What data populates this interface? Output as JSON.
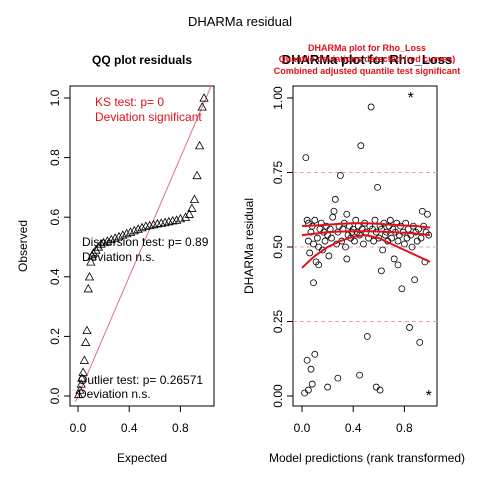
{
  "page_title": "DHARMa residual",
  "chart_data": [
    {
      "type": "scatter",
      "subtype": "qq",
      "title": "QQ plot residuals",
      "xlabel": "Expected",
      "ylabel": "Observed",
      "xlim": [
        0,
        1
      ],
      "ylim": [
        0,
        1
      ],
      "xticks": [
        "0.0",
        "0.4",
        "0.8"
      ],
      "yticks": [
        "0.0",
        "0.2",
        "0.4",
        "0.6",
        "0.8",
        "1.0"
      ],
      "reference_line": "identity",
      "point_marker": "triangle",
      "colors": {
        "reference": "#e07080",
        "text_significant": "#e0101a"
      },
      "annotations": {
        "ks_test": "KS test: p= 0",
        "ks_deviation": "Deviation  significant",
        "dispersion_test": "Dispersion test: p= 0.89",
        "dispersion_deviation": "Deviation  n.s.",
        "outlier_test": "Outlier test: p= 0.26571",
        "outlier_deviation": "Deviation  n.s."
      },
      "points": [
        [
          0.005,
          0.005
        ],
        [
          0.015,
          0.02
        ],
        [
          0.025,
          0.04
        ],
        [
          0.03,
          0.06
        ],
        [
          0.04,
          0.08
        ],
        [
          0.05,
          0.12
        ],
        [
          0.06,
          0.18
        ],
        [
          0.07,
          0.22
        ],
        [
          0.08,
          0.36
        ],
        [
          0.09,
          0.4
        ],
        [
          0.1,
          0.45
        ],
        [
          0.11,
          0.47
        ],
        [
          0.12,
          0.48
        ],
        [
          0.14,
          0.49
        ],
        [
          0.16,
          0.5
        ],
        [
          0.18,
          0.51
        ],
        [
          0.2,
          0.515
        ],
        [
          0.23,
          0.52
        ],
        [
          0.26,
          0.525
        ],
        [
          0.29,
          0.53
        ],
        [
          0.32,
          0.535
        ],
        [
          0.35,
          0.54
        ],
        [
          0.38,
          0.545
        ],
        [
          0.41,
          0.55
        ],
        [
          0.44,
          0.555
        ],
        [
          0.47,
          0.56
        ],
        [
          0.5,
          0.565
        ],
        [
          0.53,
          0.57
        ],
        [
          0.56,
          0.572
        ],
        [
          0.59,
          0.575
        ],
        [
          0.62,
          0.578
        ],
        [
          0.65,
          0.58
        ],
        [
          0.68,
          0.582
        ],
        [
          0.71,
          0.585
        ],
        [
          0.74,
          0.588
        ],
        [
          0.77,
          0.59
        ],
        [
          0.8,
          0.595
        ],
        [
          0.84,
          0.6
        ],
        [
          0.87,
          0.61
        ],
        [
          0.89,
          0.63
        ],
        [
          0.91,
          0.66
        ],
        [
          0.93,
          0.74
        ],
        [
          0.95,
          0.84
        ],
        [
          0.97,
          0.97
        ],
        [
          0.985,
          1.0
        ]
      ]
    },
    {
      "type": "scatter",
      "subtype": "residual_vs_predicted",
      "title": "DHARMa plot for Rho_Loss",
      "warning_lines": [
        "DHARMa plot for Rho_Loss",
        "Quantile deviations detected (red curves)",
        "Combined adjusted quantile test significant"
      ],
      "xlabel": "Model predictions (rank transformed)",
      "ylabel": "DHARMa residual",
      "xlim": [
        0,
        1
      ],
      "ylim": [
        0,
        1
      ],
      "xticks": [
        "0.0",
        "0.4",
        "0.8"
      ],
      "yticks": [
        "0.00",
        "0.25",
        "0.50",
        "0.75",
        "1.00"
      ],
      "reference_quantiles": [
        0.25,
        0.5,
        0.75
      ],
      "colors": {
        "quantile": "#e0101a",
        "reference": "#f0a0b0",
        "outlier": "#e0406a"
      },
      "quantile_curves": [
        {
          "name": "q0.25",
          "x": [
            0,
            0.1,
            0.2,
            0.3,
            0.4,
            0.5,
            0.6,
            0.7,
            0.8,
            0.9,
            1.0
          ],
          "y": [
            0.43,
            0.47,
            0.5,
            0.52,
            0.535,
            0.54,
            0.53,
            0.51,
            0.49,
            0.47,
            0.45
          ]
        },
        {
          "name": "q0.50",
          "x": [
            0,
            0.1,
            0.2,
            0.3,
            0.4,
            0.5,
            0.6,
            0.7,
            0.8,
            0.9,
            1.0
          ],
          "y": [
            0.54,
            0.545,
            0.55,
            0.552,
            0.553,
            0.553,
            0.552,
            0.55,
            0.548,
            0.545,
            0.54
          ]
        },
        {
          "name": "q0.75",
          "x": [
            0,
            0.1,
            0.2,
            0.3,
            0.4,
            0.5,
            0.6,
            0.7,
            0.8,
            0.9,
            1.0
          ],
          "y": [
            0.57,
            0.572,
            0.575,
            0.578,
            0.58,
            0.58,
            0.578,
            0.575,
            0.572,
            0.57,
            0.565
          ]
        }
      ],
      "outliers": [
        [
          0.85,
          1.0
        ],
        [
          0.99,
          0.0
        ]
      ],
      "points": [
        [
          0.03,
          0.8
        ],
        [
          0.04,
          0.59
        ],
        [
          0.05,
          0.58
        ],
        [
          0.05,
          0.52
        ],
        [
          0.06,
          0.48
        ],
        [
          0.07,
          0.55
        ],
        [
          0.08,
          0.57
        ],
        [
          0.09,
          0.51
        ],
        [
          0.1,
          0.59
        ],
        [
          0.11,
          0.45
        ],
        [
          0.12,
          0.53
        ],
        [
          0.13,
          0.5
        ],
        [
          0.14,
          0.56
        ],
        [
          0.15,
          0.58
        ],
        [
          0.16,
          0.49
        ],
        [
          0.17,
          0.55
        ],
        [
          0.18,
          0.52
        ],
        [
          0.19,
          0.57
        ],
        [
          0.2,
          0.54
        ],
        [
          0.21,
          0.47
        ],
        [
          0.22,
          0.56
        ],
        [
          0.23,
          0.53
        ],
        [
          0.24,
          0.6
        ],
        [
          0.25,
          0.62
        ],
        [
          0.26,
          0.66
        ],
        [
          0.27,
          0.51
        ],
        [
          0.28,
          0.55
        ],
        [
          0.29,
          0.57
        ],
        [
          0.3,
          0.74
        ],
        [
          0.31,
          0.52
        ],
        [
          0.32,
          0.56
        ],
        [
          0.33,
          0.58
        ],
        [
          0.34,
          0.5
        ],
        [
          0.35,
          0.61
        ],
        [
          0.36,
          0.54
        ],
        [
          0.37,
          0.57
        ],
        [
          0.38,
          0.53
        ],
        [
          0.39,
          0.55
        ],
        [
          0.4,
          0.56
        ],
        [
          0.41,
          0.52
        ],
        [
          0.42,
          0.59
        ],
        [
          0.43,
          0.55
        ],
        [
          0.44,
          0.57
        ],
        [
          0.45,
          0.54
        ],
        [
          0.46,
          0.84
        ],
        [
          0.47,
          0.56
        ],
        [
          0.48,
          0.51
        ],
        [
          0.49,
          0.58
        ],
        [
          0.5,
          0.55
        ],
        [
          0.51,
          0.2
        ],
        [
          0.52,
          0.53
        ],
        [
          0.53,
          0.57
        ],
        [
          0.54,
          0.97
        ],
        [
          0.55,
          0.56
        ],
        [
          0.56,
          0.52
        ],
        [
          0.57,
          0.59
        ],
        [
          0.58,
          0.55
        ],
        [
          0.59,
          0.7
        ],
        [
          0.6,
          0.53
        ],
        [
          0.61,
          0.57
        ],
        [
          0.62,
          0.56
        ],
        [
          0.63,
          0.49
        ],
        [
          0.64,
          0.58
        ],
        [
          0.65,
          0.54
        ],
        [
          0.66,
          0.55
        ],
        [
          0.67,
          0.52
        ],
        [
          0.68,
          0.57
        ],
        [
          0.69,
          0.59
        ],
        [
          0.7,
          0.53
        ],
        [
          0.71,
          0.56
        ],
        [
          0.72,
          0.46
        ],
        [
          0.73,
          0.55
        ],
        [
          0.74,
          0.58
        ],
        [
          0.75,
          0.52
        ],
        [
          0.76,
          0.54
        ],
        [
          0.77,
          0.57
        ],
        [
          0.78,
          0.36
        ],
        [
          0.79,
          0.55
        ],
        [
          0.8,
          0.51
        ],
        [
          0.81,
          0.58
        ],
        [
          0.82,
          0.53
        ],
        [
          0.83,
          0.56
        ],
        [
          0.84,
          0.23
        ],
        [
          0.85,
          0.54
        ],
        [
          0.86,
          0.5
        ],
        [
          0.87,
          0.57
        ],
        [
          0.88,
          0.39
        ],
        [
          0.89,
          0.55
        ],
        [
          0.9,
          0.52
        ],
        [
          0.91,
          0.56
        ],
        [
          0.92,
          0.18
        ],
        [
          0.93,
          0.53
        ],
        [
          0.94,
          0.62
        ],
        [
          0.95,
          0.57
        ],
        [
          0.96,
          0.45
        ],
        [
          0.97,
          0.55
        ],
        [
          0.98,
          0.61
        ],
        [
          0.99,
          0.54
        ],
        [
          0.04,
          0.12
        ],
        [
          0.05,
          0.02
        ],
        [
          0.07,
          0.09
        ],
        [
          0.08,
          0.04
        ],
        [
          0.1,
          0.14
        ],
        [
          0.2,
          0.03
        ],
        [
          0.28,
          0.06
        ],
        [
          0.45,
          0.07
        ],
        [
          0.58,
          0.03
        ],
        [
          0.61,
          0.02
        ],
        [
          0.02,
          0.01
        ],
        [
          0.09,
          0.38
        ],
        [
          0.13,
          0.44
        ],
        [
          0.35,
          0.46
        ],
        [
          0.62,
          0.42
        ],
        [
          0.75,
          0.44
        ]
      ]
    }
  ]
}
